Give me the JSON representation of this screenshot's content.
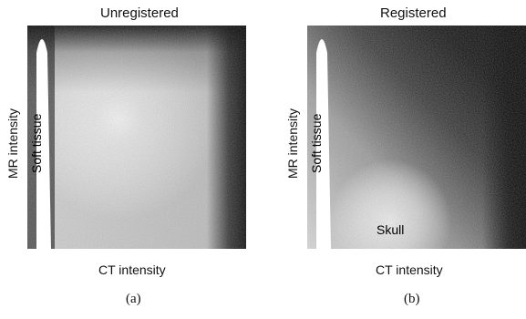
{
  "panels": [
    {
      "title": "Unregistered",
      "xlabel": "CT intensity",
      "ylabel": "MR intensity",
      "caption": "(a)",
      "annotations": {
        "soft_tissue": "Soft tissue"
      }
    },
    {
      "title": "Registered",
      "xlabel": "CT intensity",
      "ylabel": "MR intensity",
      "caption": "(b)",
      "annotations": {
        "soft_tissue": "Soft tissue",
        "skull": "Skull"
      }
    }
  ]
}
